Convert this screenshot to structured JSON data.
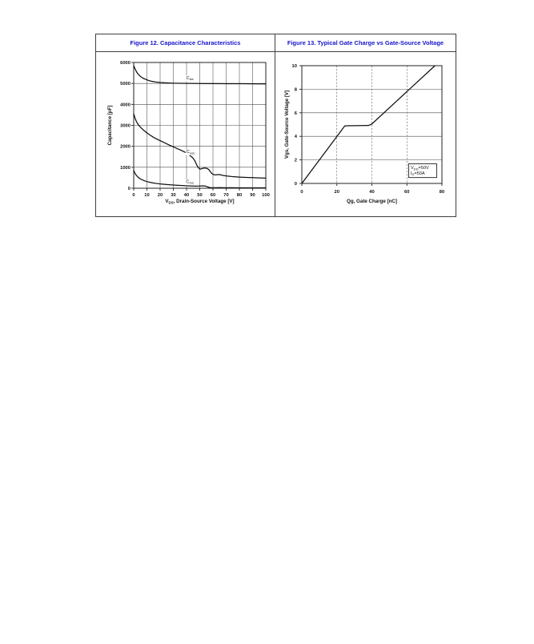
{
  "page": {
    "background": "#ffffff",
    "accent_blue": "#1414cc",
    "line_color": "#111111",
    "grid_color": "#4a4a4a"
  },
  "figures": [
    {
      "title": "Figure 12. Capacitance Characteristics"
    },
    {
      "title": "Figure 13. Typical Gate Charge vs Gate-Source Voltage"
    }
  ],
  "chart_data": [
    {
      "type": "line",
      "name": "capacitance-characteristics",
      "title": "Figure 12. Capacitance Characteristics",
      "xlabel": "V~DS~, Drain-Source Voltage [V]",
      "ylabel": "Capacitance [pF]",
      "xlim": [
        0,
        100
      ],
      "ylim": [
        0,
        6000
      ],
      "xticks": [
        0,
        10,
        20,
        30,
        40,
        50,
        60,
        70,
        80,
        90,
        100
      ],
      "yticks": [
        0,
        1000,
        2000,
        3000,
        4000,
        5000,
        6000
      ],
      "grid": {
        "vertical": "solid",
        "horizontal": "solid"
      },
      "series": [
        {
          "name": "C~iss~",
          "label_at": [
            42.5,
            5280
          ],
          "points": [
            [
              0,
              5850
            ],
            [
              1,
              5700
            ],
            [
              2,
              5570
            ],
            [
              3,
              5470
            ],
            [
              5,
              5340
            ],
            [
              7,
              5250
            ],
            [
              10,
              5170
            ],
            [
              13,
              5110
            ],
            [
              16,
              5075
            ],
            [
              20,
              5045
            ],
            [
              25,
              5025
            ],
            [
              30,
              5012
            ],
            [
              40,
              5000
            ],
            [
              50,
              4995
            ],
            [
              60,
              4990
            ],
            [
              70,
              4988
            ],
            [
              80,
              4985
            ],
            [
              90,
              4982
            ],
            [
              100,
              4980
            ]
          ]
        },
        {
          "name": "C~oss~",
          "label_at": [
            43,
            1760
          ],
          "points": [
            [
              0,
              3550
            ],
            [
              0.5,
              3450
            ],
            [
              1,
              3340
            ],
            [
              2,
              3190
            ],
            [
              3,
              3080
            ],
            [
              4,
              2990
            ],
            [
              5,
              2920
            ],
            [
              6,
              2860
            ],
            [
              8,
              2740
            ],
            [
              10,
              2640
            ],
            [
              12,
              2550
            ],
            [
              15,
              2430
            ],
            [
              18,
              2330
            ],
            [
              20,
              2270
            ],
            [
              23,
              2180
            ],
            [
              25,
              2120
            ],
            [
              28,
              2030
            ],
            [
              30,
              1975
            ],
            [
              33,
              1890
            ],
            [
              35,
              1835
            ],
            [
              38,
              1745
            ],
            [
              40,
              1680
            ],
            [
              42,
              1590
            ],
            [
              43,
              1540
            ],
            [
              44,
              1490
            ],
            [
              45,
              1430
            ],
            [
              46,
              1340
            ],
            [
              47,
              1210
            ],
            [
              48,
              1080
            ],
            [
              49,
              980
            ],
            [
              50,
              915
            ],
            [
              51,
              920
            ],
            [
              52,
              945
            ],
            [
              53,
              960
            ],
            [
              54,
              965
            ],
            [
              55,
              955
            ],
            [
              56,
              930
            ],
            [
              57,
              880
            ],
            [
              58,
              790
            ],
            [
              59,
              710
            ],
            [
              60,
              665
            ],
            [
              61,
              645
            ],
            [
              62,
              635
            ],
            [
              63,
              645
            ],
            [
              64,
              655
            ],
            [
              65,
              650
            ],
            [
              66,
              635
            ],
            [
              67,
              620
            ],
            [
              68,
              608
            ],
            [
              70,
              588
            ],
            [
              72,
              572
            ],
            [
              75,
              552
            ],
            [
              78,
              540
            ],
            [
              80,
              532
            ],
            [
              85,
              518
            ],
            [
              90,
              505
            ],
            [
              95,
              492
            ],
            [
              100,
              482
            ]
          ]
        },
        {
          "name": "C~rss~",
          "label_at": [
            42.5,
            330
          ],
          "points": [
            [
              0,
              860
            ],
            [
              0.5,
              780
            ],
            [
              1,
              710
            ],
            [
              1.5,
              660
            ],
            [
              2,
              615
            ],
            [
              3,
              545
            ],
            [
              4,
              490
            ],
            [
              5,
              450
            ],
            [
              6,
              415
            ],
            [
              8,
              360
            ],
            [
              10,
              318
            ],
            [
              12,
              285
            ],
            [
              15,
              248
            ],
            [
              18,
              222
            ],
            [
              20,
              205
            ],
            [
              25,
              175
            ],
            [
              30,
              152
            ],
            [
              35,
              133
            ],
            [
              40,
              118
            ],
            [
              43,
              110
            ],
            [
              45,
              106
            ],
            [
              47,
              102
            ],
            [
              49,
              103
            ],
            [
              50,
              107
            ],
            [
              51,
              112
            ],
            [
              52,
              115
            ],
            [
              53,
              112
            ],
            [
              54,
              105
            ],
            [
              55,
              88
            ],
            [
              56,
              62
            ],
            [
              57,
              42
            ],
            [
              58,
              30
            ],
            [
              59,
              26
            ],
            [
              60,
              24
            ],
            [
              62,
              24
            ],
            [
              64,
              27
            ],
            [
              66,
              29
            ],
            [
              68,
              26
            ],
            [
              70,
              24
            ],
            [
              75,
              22
            ],
            [
              80,
              21
            ],
            [
              85,
              20
            ],
            [
              90,
              20
            ],
            [
              95,
              19
            ],
            [
              100,
              19
            ]
          ]
        }
      ]
    },
    {
      "type": "line",
      "name": "gate-charge",
      "title": "Figure 13. Typical Gate Charge vs Gate-Source Voltage",
      "xlabel": "Qg, Gate Charge [nC]",
      "ylabel": "Vgs, Gate-Source Voltage [V]",
      "xlim": [
        0,
        80
      ],
      "ylim": [
        0,
        10
      ],
      "xticks": [
        0,
        20,
        40,
        60,
        80
      ],
      "yticks": [
        0,
        2,
        4,
        6,
        8,
        10
      ],
      "grid": {
        "vertical": "dashed",
        "horizontal": "solid"
      },
      "series": [
        {
          "name": "",
          "points": [
            [
              0,
              0
            ],
            [
              24.5,
              4.88
            ],
            [
              26,
              4.9
            ],
            [
              38,
              4.92
            ],
            [
              40,
              5.05
            ],
            [
              76,
              10
            ]
          ]
        }
      ],
      "annotation": {
        "lines": [
          "V~DD~=50V",
          "I~D~=50A"
        ],
        "x": [
          61,
          77
        ],
        "y": [
          0.5,
          1.67
        ]
      }
    }
  ]
}
